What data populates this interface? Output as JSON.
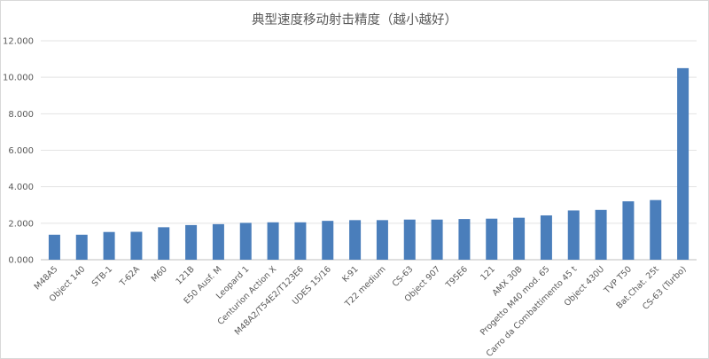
{
  "chart_data": {
    "type": "bar",
    "title": "典型速度移动射击精度（越小越好）",
    "xlabel": "",
    "ylabel": "",
    "ylim": [
      0,
      12
    ],
    "yticks": [
      0,
      2,
      4,
      6,
      8,
      10,
      12
    ],
    "ytick_labels": [
      "0.000",
      "2.000",
      "4.000",
      "6.000",
      "8.000",
      "10.000",
      "12.000"
    ],
    "grid": true,
    "legend": "none",
    "bar_color": "#4a7ebb",
    "categories": [
      "M48A5",
      "Object 140",
      "STB-1",
      "T-62A",
      "M60",
      "121B",
      "E50 Ausf. M",
      "Leopard 1",
      "Centurion Action X",
      "M48A2/T54E2/T123E6",
      "UDES 15/16",
      "K-91",
      "T22 medium",
      "CS-63",
      "Object 907",
      "T95E6",
      "121",
      "AMX 30B",
      "Progetto M40 mod. 65",
      "Carro da Combattimento 45 t",
      "Object 430U",
      "TVP T50",
      "Bat.Chat. 25t",
      "CS-63 (Turbo)"
    ],
    "values": [
      1.37,
      1.37,
      1.52,
      1.53,
      1.78,
      1.9,
      1.95,
      2.02,
      2.05,
      2.05,
      2.13,
      2.17,
      2.17,
      2.2,
      2.2,
      2.23,
      2.25,
      2.3,
      2.43,
      2.7,
      2.73,
      3.2,
      3.27,
      10.5
    ]
  }
}
